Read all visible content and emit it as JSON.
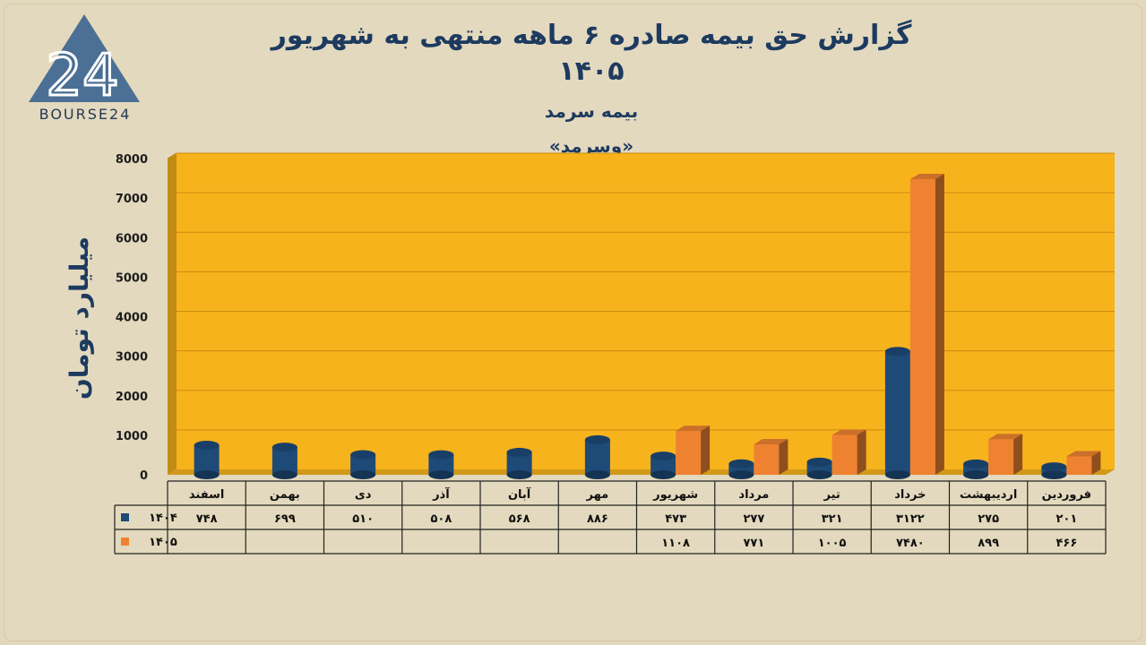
{
  "logo": {
    "text": "BOURSE24"
  },
  "header": {
    "title": "گزارش  حق بیمه صادره ۶ ماهه منتهی به شهریور ۱۴۰۵",
    "subtitle": "بیمه سرمد",
    "ticker": "«وسرمد»"
  },
  "colors": {
    "plot_background": "#f7b31c",
    "series_1404": "#1e4a78",
    "series_1405": "#ef8231",
    "page_background": "#e2d8bd",
    "title_color": "#1d3a5f"
  },
  "chart_data": {
    "type": "bar",
    "ylabel": "میلیارد تومان",
    "ylim": [
      0,
      8000
    ],
    "ytick_labels": [
      "0",
      "1000",
      "2000",
      "3000",
      "4000",
      "5000",
      "6000",
      "7000",
      "8000"
    ],
    "categories": [
      "فروردین",
      "اردیبهشت",
      "خرداد",
      "تیر",
      "مرداد",
      "شهریور",
      "مهر",
      "آبان",
      "آذر",
      "دی",
      "بهمن",
      "اسفند"
    ],
    "grid": true,
    "legend": "data-table-left",
    "series": [
      {
        "name": "۱۴۰۴",
        "values": [
          201,
          275,
          3122,
          321,
          277,
          473,
          886,
          568,
          508,
          510,
          699,
          748
        ],
        "labels": [
          "۲۰۱",
          "۲۷۵",
          "۳۱۲۲",
          "۳۲۱",
          "۲۷۷",
          "۴۷۳",
          "۸۸۶",
          "۵۶۸",
          "۵۰۸",
          "۵۱۰",
          "۶۹۹",
          "۷۴۸"
        ]
      },
      {
        "name": "۱۴۰۵",
        "values": [
          466,
          899,
          7480,
          1005,
          771,
          1108,
          null,
          null,
          null,
          null,
          null,
          null
        ],
        "labels": [
          "۴۶۶",
          "۸۹۹",
          "۷۴۸۰",
          "۱۰۰۵",
          "۷۷۱",
          "۱۱۰۸",
          "",
          "",
          "",
          "",
          "",
          ""
        ]
      }
    ]
  }
}
